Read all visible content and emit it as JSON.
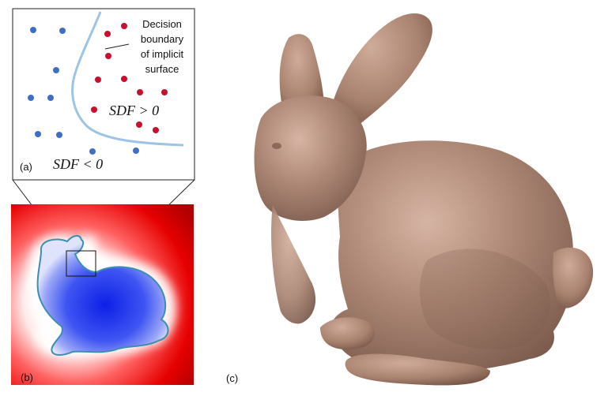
{
  "panel_a": {
    "label": "(a)",
    "annotation_lines": [
      "Decision",
      "boundary",
      "of implicit",
      "surface"
    ],
    "positive_label": "SDF > 0",
    "negative_label": "SDF < 0",
    "colors": {
      "inside_point": "#3f6fc4",
      "outside_point": "#c8102e",
      "boundary": "#9dc3e6"
    }
  },
  "panel_b": {
    "label": "(b)",
    "colors": {
      "outside": "#e60000",
      "inside": "#2a3cf0",
      "contour": "#3b8fb0",
      "near": "#ffffff"
    }
  },
  "panel_c": {
    "label": "(c)",
    "colors": {
      "mesh": "#b08a78",
      "highlight": "#d6b4a3",
      "shadow": "#7a5a4c"
    }
  }
}
